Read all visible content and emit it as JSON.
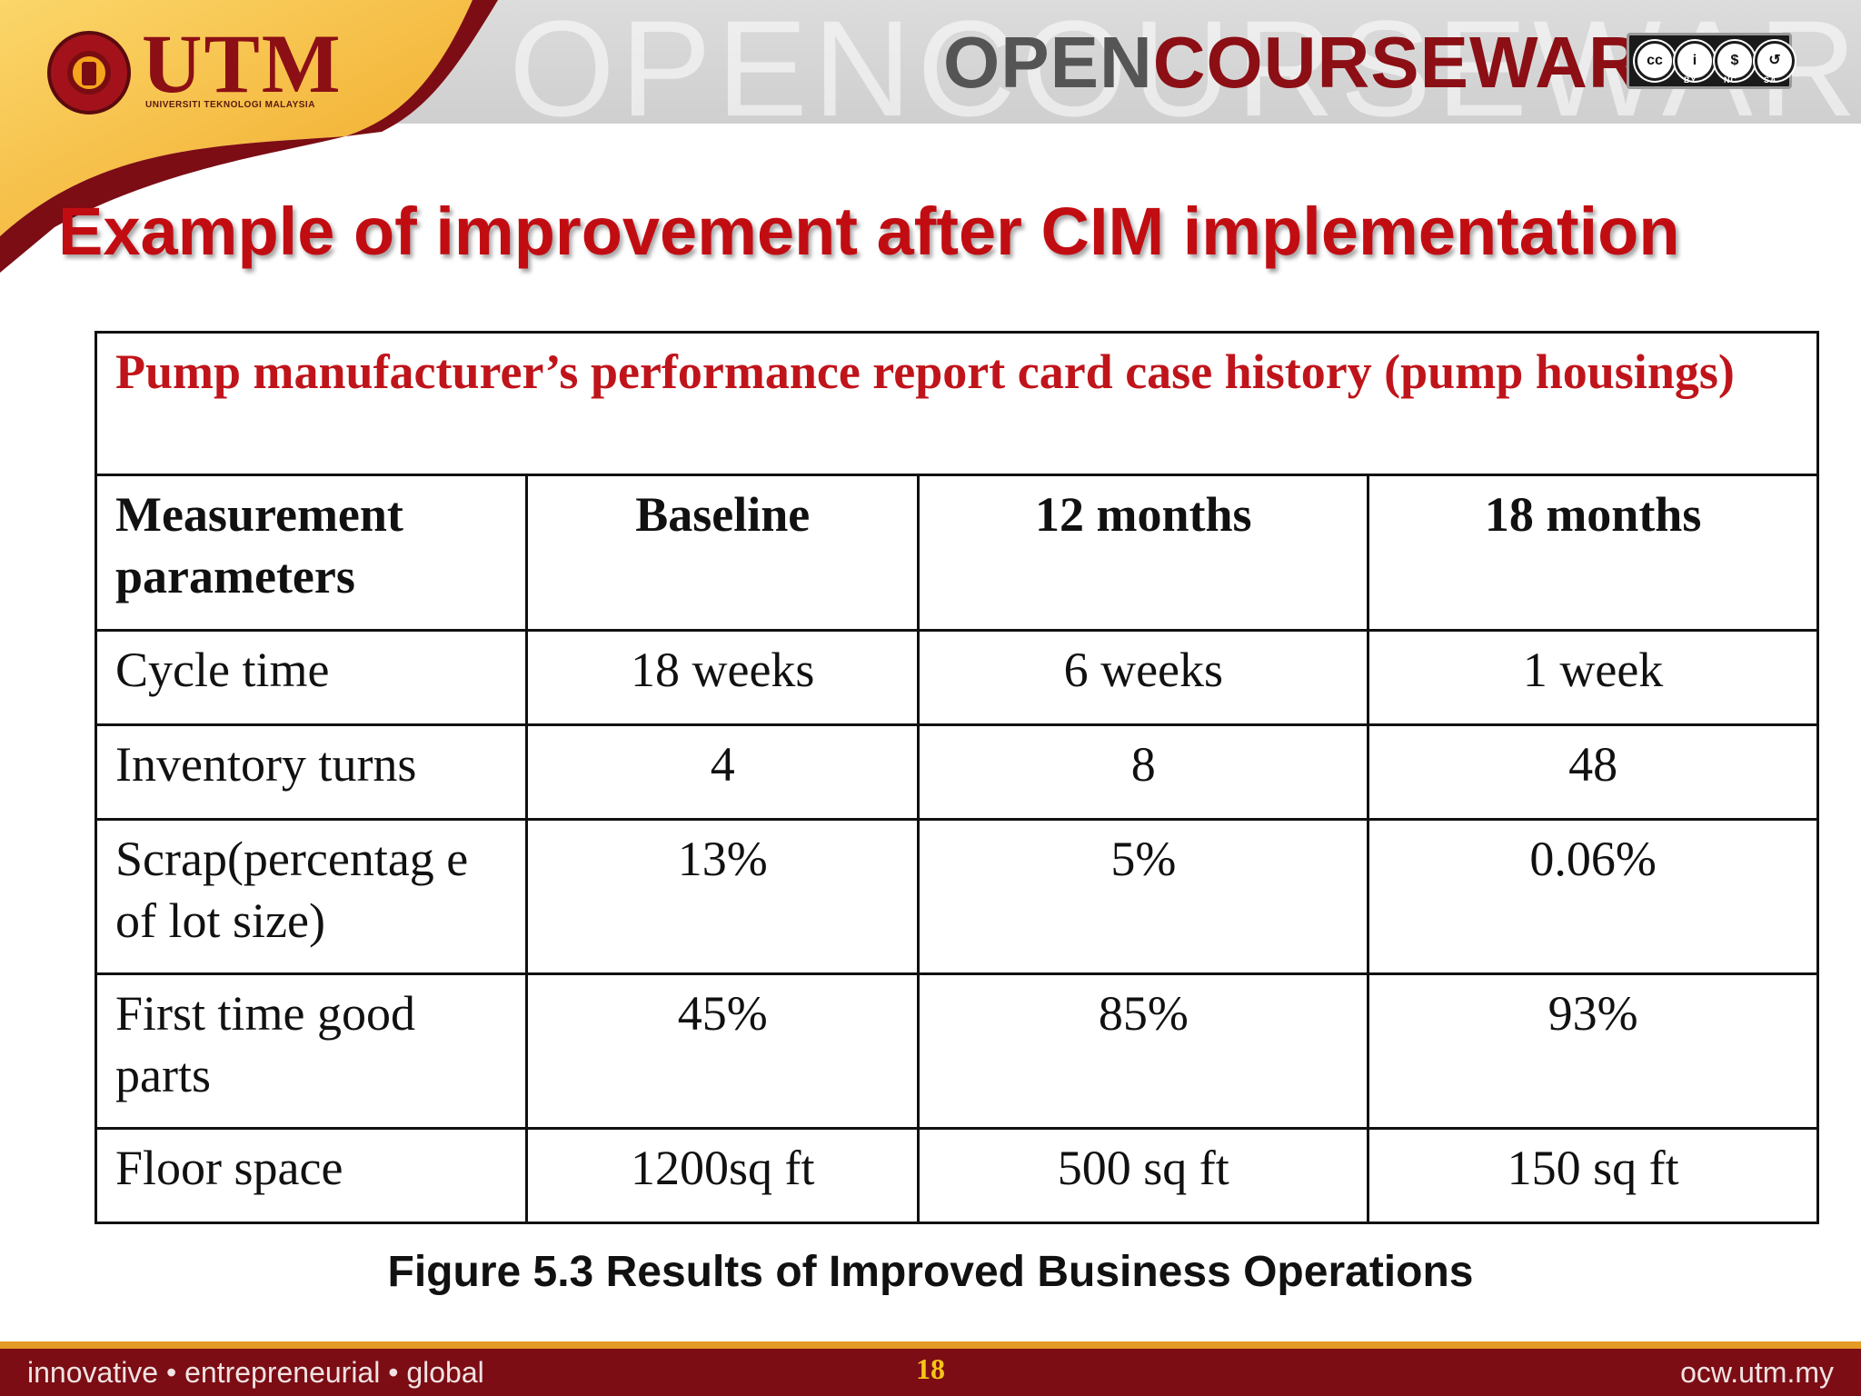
{
  "header": {
    "logo_text": "UTM",
    "logo_subtitle": "UNIVERSITI TEKNOLOGI MALAYSIA",
    "brand_open": "OPEN",
    "brand_courseware": "COURSEWARE",
    "license_labels": [
      "BY",
      "NC",
      "SA"
    ],
    "watermark": "OPENCOURSEWARE"
  },
  "title": "Example of improvement after CIM implementation",
  "table": {
    "caption": "Pump manufacturer’s performance report card case history (pump housings)",
    "columns": [
      "Measurement parameters",
      "Baseline",
      "12 months",
      "18 months"
    ],
    "rows": [
      [
        "Cycle time",
        "18 weeks",
        "6 weeks",
        "1 week"
      ],
      [
        "Inventory turns",
        "4",
        "8",
        "48"
      ],
      [
        "Scrap(percentag e of lot size)",
        "13%",
        "5%",
        "0.06%"
      ],
      [
        "First time good parts",
        "45%",
        "85%",
        "93%"
      ],
      [
        "Floor space",
        "1200sq ft",
        "500 sq ft",
        "150 sq ft"
      ]
    ]
  },
  "figure_caption": "Figure 5.3 Results of Improved Business Operations",
  "footer": {
    "tagline": "innovative • entrepreneurial • global",
    "page_number": "18",
    "url": "ocw.utm.my"
  },
  "colors": {
    "brand_red": "#c10d12",
    "maroon": "#7c0d14",
    "gold": "#f4a51c"
  },
  "icons": [
    "utm-emblem-icon",
    "creative-commons-icon"
  ]
}
